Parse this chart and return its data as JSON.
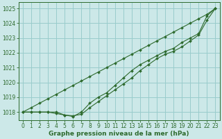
{
  "hours": [
    0,
    1,
    2,
    3,
    4,
    5,
    6,
    7,
    8,
    9,
    10,
    11,
    12,
    13,
    14,
    15,
    16,
    17,
    18,
    19,
    20,
    21,
    22,
    23
  ],
  "line_straight": [
    1018.0,
    1018.3,
    1018.6,
    1018.9,
    1019.2,
    1019.5,
    1019.8,
    1020.1,
    1020.4,
    1020.7,
    1021.0,
    1021.3,
    1021.6,
    1021.9,
    1022.2,
    1022.5,
    1022.8,
    1023.1,
    1023.4,
    1023.7,
    1024.0,
    1024.3,
    1024.6,
    1025.0
  ],
  "line_mid": [
    1018.0,
    1018.0,
    1018.0,
    1018.0,
    1017.9,
    1017.8,
    1017.75,
    1017.85,
    1018.3,
    1018.7,
    1019.1,
    1019.5,
    1019.9,
    1020.3,
    1020.8,
    1021.2,
    1021.6,
    1021.9,
    1022.1,
    1022.4,
    1022.8,
    1023.2,
    1024.2,
    1025.0
  ],
  "line_low": [
    1018.0,
    1018.0,
    1018.0,
    1018.0,
    1018.0,
    1017.8,
    1017.7,
    1018.0,
    1018.6,
    1019.0,
    1019.3,
    1019.8,
    1020.3,
    1020.8,
    1021.2,
    1021.5,
    1021.8,
    1022.1,
    1022.3,
    1022.7,
    1023.0,
    1023.3,
    1024.5,
    1025.0
  ],
  "bg_color": "#cce8e8",
  "grid_color": "#99cccc",
  "line_color": "#2d6a2d",
  "marker": "D",
  "marker_size": 2.0,
  "line_width": 0.8,
  "xlabel": "Graphe pression niveau de la mer (hPa)",
  "ylim": [
    1017.45,
    1025.4
  ],
  "yticks": [
    1018,
    1019,
    1020,
    1021,
    1022,
    1023,
    1024,
    1025
  ],
  "xticks": [
    0,
    1,
    2,
    3,
    4,
    5,
    6,
    7,
    8,
    9,
    10,
    11,
    12,
    13,
    14,
    15,
    16,
    17,
    18,
    19,
    20,
    21,
    22,
    23
  ],
  "xlabel_fontsize": 6.5,
  "tick_fontsize": 5.5
}
